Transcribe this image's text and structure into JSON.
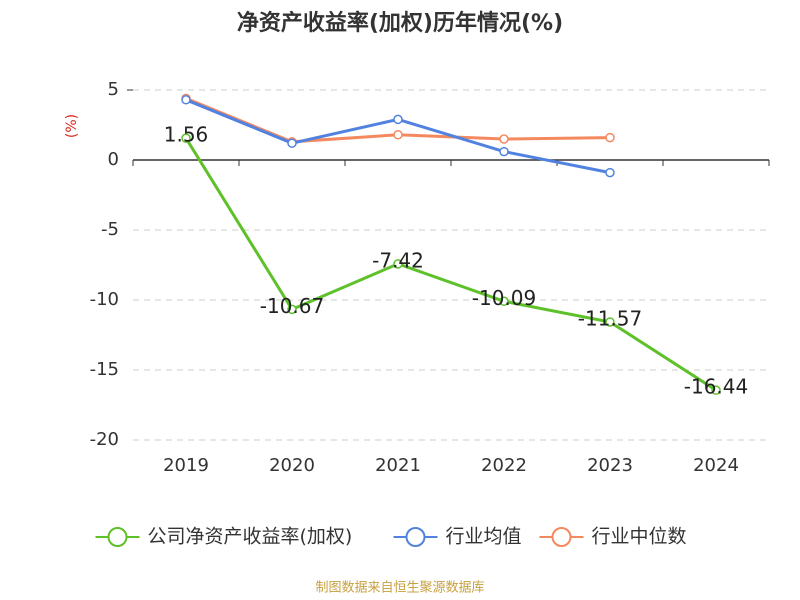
{
  "chart_data": {
    "type": "line",
    "title": "净资产收益率(加权)历年情况(%)",
    "y_label": "(%)",
    "categories": [
      "2019",
      "2020",
      "2021",
      "2022",
      "2023",
      "2024"
    ],
    "series": [
      {
        "name": "公司净资产收益率(加权)",
        "color": "#5ec12a",
        "values": [
          1.56,
          -10.67,
          -7.42,
          -10.09,
          -11.57,
          -16.44
        ],
        "show_labels": true
      },
      {
        "name": "行业均值",
        "color": "#5282e0",
        "values": [
          4.3,
          1.2,
          2.9,
          0.6,
          -0.9,
          null
        ],
        "show_labels": false
      },
      {
        "name": "行业中位数",
        "color": "#f4895f",
        "values": [
          4.4,
          1.3,
          1.8,
          1.5,
          1.6,
          null
        ],
        "show_labels": false
      }
    ],
    "ylim": [
      -20,
      5
    ],
    "yticks": [
      -20,
      -15,
      -10,
      -5,
      0,
      5
    ],
    "grid": true,
    "legend": "bottom",
    "source": "制图数据来自恒生聚源数据库"
  }
}
